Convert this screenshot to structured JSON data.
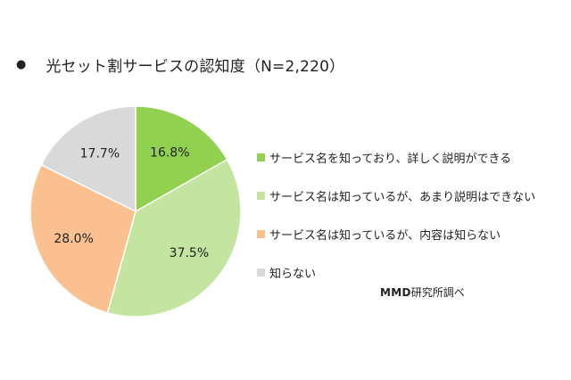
{
  "header": {
    "bullet": "●",
    "title": "光セット割サービスの認知度（N=2,220）"
  },
  "chart_data": {
    "type": "pie",
    "title": "光セット割サービスの認知度（N=2,220）",
    "start_angle_deg": 0,
    "direction": "clockwise",
    "slices": [
      {
        "label": "サービス名を知っており、詳しく説明ができる",
        "value": 16.8,
        "display": "16.8%",
        "color": "#92d050"
      },
      {
        "label": "サービス名は知っているが、あまり説明はできない",
        "value": 37.5,
        "display": "37.5%",
        "color": "#c4e59f"
      },
      {
        "label": "サービス名は知っているが、内容は知らない",
        "value": 28.0,
        "display": "28.0%",
        "color": "#fac090"
      },
      {
        "label": "知らない",
        "value": 17.7,
        "display": "17.7%",
        "color": "#d9d9d9"
      }
    ],
    "legend_position": "right"
  },
  "source": {
    "brand": "MMD",
    "rest": "研究所調べ"
  }
}
